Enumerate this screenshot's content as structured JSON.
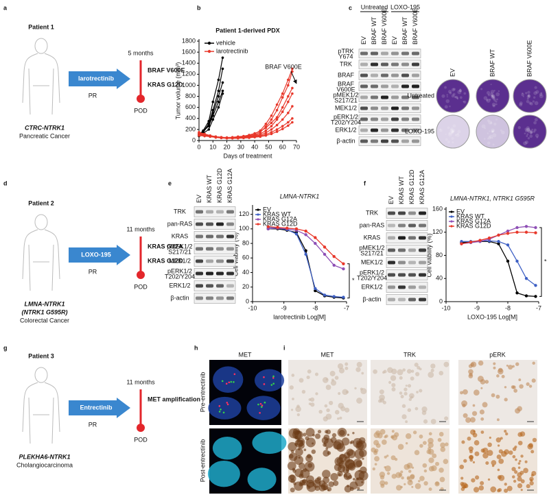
{
  "panel_labels": [
    "a",
    "b",
    "c",
    "d",
    "e",
    "f",
    "g",
    "h",
    "i"
  ],
  "patients": [
    {
      "title": "Patient 1",
      "drug": "larotrectinib",
      "response": "PR",
      "duration": "5 months",
      "mutations": [
        "BRAF V600E",
        "KRAS G12D"
      ],
      "outcome": "POD",
      "fusion": "CTRC-NTRK1",
      "cancer": "Pancreatic Cancer"
    },
    {
      "title": "Patient 2",
      "drug": "LOXO-195",
      "response": "PR",
      "duration": "11 months",
      "mutations": [
        "KRAS G12A",
        "KRAS G12D"
      ],
      "outcome": "POD",
      "fusion": "LMNA-NTRK1",
      "fusion_detail": "(NTRK1 G595R)",
      "cancer": "Colorectal Cancer"
    },
    {
      "title": "Patient 3",
      "drug": "Entrectinib",
      "response": "PR",
      "duration": "11 months",
      "mutations": [
        "MET amplification"
      ],
      "outcome": "POD",
      "fusion": "PLEKHA6-NTRK1",
      "cancer": "Cholangiocarcinoma"
    }
  ],
  "chart_data": [
    {
      "type": "line",
      "title": "Patient 1-derived PDX",
      "x_label": "Days of treatment",
      "y_label": "Tumor volume (mm³)",
      "xlim": [
        0,
        70
      ],
      "xticks": [
        0,
        10,
        20,
        30,
        40,
        50,
        60,
        70
      ],
      "ylim": [
        0,
        1800
      ],
      "yticks": [
        0,
        200,
        400,
        600,
        800,
        1000,
        1200,
        1400,
        1600,
        1800
      ],
      "legend": "upper left",
      "annotation": "BRAF V600E",
      "series": [
        {
          "name": "vehicle",
          "color": "#000000",
          "x": [
            0,
            3,
            7,
            10,
            14,
            17
          ],
          "curves": [
            [
              100,
              180,
              350,
              700,
              1100,
              1500
            ],
            [
              110,
              160,
              300,
              550,
              900,
              1300
            ],
            [
              90,
              150,
              280,
              500,
              800,
              1050
            ],
            [
              120,
              170,
              260,
              450,
              700,
              900
            ],
            [
              80,
              130,
              200,
              380,
              600,
              850
            ]
          ]
        },
        {
          "name": "larotrectinib",
          "color": "#e8382b",
          "x": [
            0,
            4,
            8,
            12,
            16,
            20,
            24,
            28,
            32,
            36,
            40,
            44,
            48,
            52,
            56,
            60,
            64,
            67
          ],
          "curves": [
            [
              150,
              120,
              90,
              70,
              60,
              50,
              50,
              60,
              70,
              90,
              120,
              180,
              300,
              450,
              650,
              850,
              1100,
              1300
            ],
            [
              130,
              110,
              80,
              60,
              50,
              45,
              50,
              55,
              65,
              80,
              100,
              150,
              250,
              380,
              550,
              780,
              1000,
              1250
            ],
            [
              120,
              100,
              85,
              70,
              60,
              55,
              60,
              70,
              80,
              100,
              130,
              170,
              230,
              320,
              420,
              600,
              800,
              950
            ],
            [
              140,
              110,
              90,
              70,
              55,
              50,
              50,
              55,
              60,
              75,
              90,
              120,
              180,
              260,
              380,
              520,
              700,
              850
            ],
            [
              110,
              95,
              80,
              65,
              55,
              45,
              45,
              50,
              55,
              65,
              80,
              100,
              140,
              200,
              280,
              380,
              500,
              620
            ],
            [
              100,
              90,
              75,
              60,
              50,
              40,
              40,
              45,
              50,
              60,
              70,
              85,
              110,
              150,
              200,
              260,
              330,
              400
            ],
            [
              90,
              80,
              70,
              55,
              45,
              40,
              40,
              40,
              45,
              50,
              60,
              70,
              90,
              120,
              160,
              210,
              270,
              330
            ]
          ]
        }
      ]
    },
    {
      "type": "line",
      "title": "LMNA-NTRK1",
      "title_italic": true,
      "x_label": "larotrectinib Log[M]",
      "y_label": "Cell viability (%)",
      "xlim": [
        -10,
        -7
      ],
      "xticks": [
        -10,
        -9,
        -8,
        -7
      ],
      "ylim": [
        0,
        130
      ],
      "yticks": [
        0,
        20,
        40,
        60,
        80,
        100,
        120
      ],
      "legend": "upper left",
      "annotation": "*",
      "x": [
        -9.5,
        -9.2,
        -8.9,
        -8.6,
        -8.3,
        -8.0,
        -7.7,
        -7.4,
        -7.1
      ],
      "series": [
        {
          "name": "EV",
          "color": "#000000",
          "values": [
            100,
            100,
            98,
            95,
            70,
            15,
            8,
            6,
            5
          ]
        },
        {
          "name": "KRAS WT",
          "color": "#3d5fc4",
          "values": [
            102,
            101,
            99,
            93,
            65,
            18,
            9,
            7,
            6
          ]
        },
        {
          "name": "KRAS G12A",
          "color": "#8e4fb5",
          "values": [
            100,
            101,
            100,
            98,
            92,
            80,
            65,
            50,
            45
          ]
        },
        {
          "name": "KRAS G12D",
          "color": "#e8382b",
          "values": [
            103,
            102,
            101,
            100,
            97,
            88,
            75,
            62,
            52
          ]
        }
      ]
    },
    {
      "type": "line",
      "title": "LMNA-NTRK1, NTRK1 G595R",
      "title_italic": true,
      "x_label": "LOXO-195 Log[M]",
      "y_label": "Cell viability (%)",
      "xlim": [
        -10,
        -7
      ],
      "xticks": [
        -10,
        -9,
        -8,
        -7
      ],
      "ylim": [
        0,
        160
      ],
      "yticks": [
        0,
        40,
        80,
        120,
        160
      ],
      "legend": "upper left",
      "annotation": "*",
      "x": [
        -9.5,
        -9.2,
        -8.9,
        -8.6,
        -8.3,
        -8.0,
        -7.7,
        -7.4,
        -7.1
      ],
      "series": [
        {
          "name": "EV",
          "color": "#000000",
          "values": [
            102,
            103,
            104,
            104,
            100,
            70,
            15,
            10,
            9
          ]
        },
        {
          "name": "KRAS WT",
          "color": "#3d5fc4",
          "values": [
            104,
            104,
            105,
            105,
            104,
            98,
            70,
            40,
            28
          ]
        },
        {
          "name": "KRAS G12A",
          "color": "#8e4fb5",
          "values": [
            100,
            102,
            104,
            108,
            115,
            122,
            128,
            130,
            128
          ]
        },
        {
          "name": "KRAS G12D",
          "color": "#e8382b",
          "values": [
            100,
            103,
            106,
            110,
            115,
            118,
            120,
            120,
            119
          ]
        }
      ]
    }
  ],
  "blots": [
    {
      "groups": [
        "Untreated",
        "LOXO-195"
      ],
      "lanes": [
        "EV",
        "BRAF WT",
        "BRAF V600E",
        "EV",
        "BRAF WT",
        "BRAF V600E"
      ],
      "rows": [
        {
          "name": "pTRK",
          "sub": "Y674"
        },
        {
          "name": "TRK"
        },
        {
          "name": "BRAF"
        },
        {
          "name": "BRAF",
          "sub": "V600E"
        },
        {
          "name": "pMEK1/2",
          "sub": "S217/21"
        },
        {
          "name": "MEK1/2"
        },
        {
          "name": "pERK1/2",
          "sub": "T202/Y204"
        },
        {
          "name": "ERK1/2"
        },
        {
          "name": "β-actin"
        }
      ]
    },
    {
      "lanes": [
        "EV",
        "KRAS WT",
        "KRAS G12D",
        "KRAS G12A"
      ],
      "rows": [
        {
          "name": "TRK"
        },
        {
          "name": "pan-RAS"
        },
        {
          "name": "KRAS"
        },
        {
          "name": "pMEK1/2",
          "sub": "S217/21"
        },
        {
          "name": "MEK1/2"
        },
        {
          "name": "pERK1/2",
          "sub": "T202/Y204"
        },
        {
          "name": "ERK1/2"
        },
        {
          "name": "β-actin"
        }
      ]
    },
    {
      "lanes": [
        "EV",
        "KRAS WT",
        "KRAS G12D",
        "KRAS G12A"
      ],
      "rows": [
        {
          "name": "TRK"
        },
        {
          "name": "pan-RAS"
        },
        {
          "name": "KRAS"
        },
        {
          "name": "pMEK1/2",
          "sub": "S217/21"
        },
        {
          "name": "MEK1/2"
        },
        {
          "name": "pERK1/2",
          "sub": "T202/Y204"
        },
        {
          "name": "ERK1/2"
        },
        {
          "name": "β-actin"
        }
      ]
    }
  ],
  "colony": {
    "columns": [
      "EV",
      "BRAF WT",
      "BRAF V600E"
    ],
    "rows": [
      "Untreated",
      "LOXO-195"
    ]
  },
  "microscopy": {
    "h_title": "MET",
    "rows": [
      "Pre-entrectinib",
      "Post-entrectinib"
    ],
    "i_columns": [
      "MET",
      "TRK",
      "pERK"
    ]
  }
}
